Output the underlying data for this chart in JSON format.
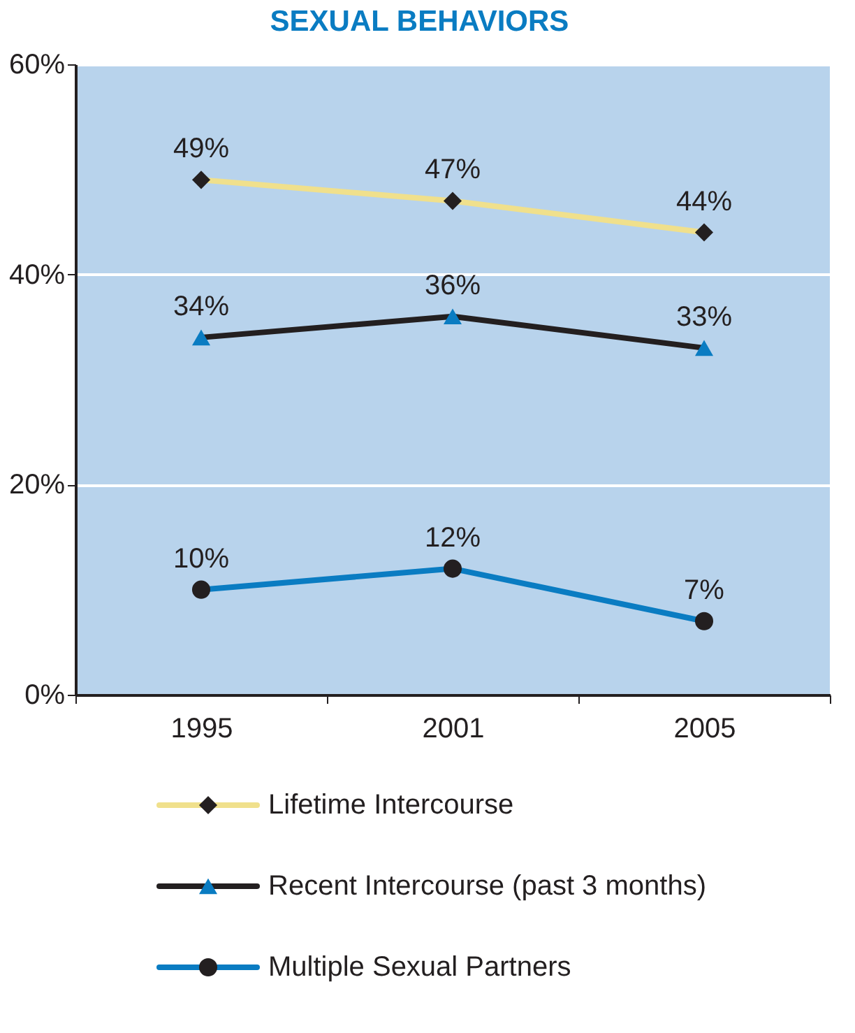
{
  "chart_data": {
    "type": "line",
    "title": "SEXUAL BEHAVIORS",
    "categories": [
      "1995",
      "2001",
      "2005"
    ],
    "ylim": [
      0,
      60
    ],
    "yticks": [
      {
        "value": 0,
        "label": "0%"
      },
      {
        "value": 20,
        "label": "20%"
      },
      {
        "value": 40,
        "label": "40%"
      },
      {
        "value": 60,
        "label": "60%"
      }
    ],
    "grid": "y",
    "legend": "bottom",
    "line_style": "solid",
    "series": [
      {
        "name": "Lifetime Intercourse",
        "color": "#f0e08c",
        "marker": "diamond",
        "colors": [
          "#231f20",
          "#231f20",
          "#231f20"
        ],
        "values": [
          49,
          47,
          44
        ],
        "value_labels": [
          "49%",
          "47%",
          "44%"
        ]
      },
      {
        "name": "Recent Intercourse (past 3 months)",
        "color": "#231f20",
        "marker": "triangle",
        "colors": [
          "#0a7cc2",
          "#0a7cc2",
          "#0a7cc2"
        ],
        "values": [
          34,
          36,
          33
        ],
        "value_labels": [
          "34%",
          "36%",
          "33%"
        ]
      },
      {
        "name": "Multiple Sexual Partners",
        "color": "#0a7cc2",
        "marker": "circle",
        "colors": [
          "#231f20",
          "#231f20",
          "#231f20"
        ],
        "values": [
          10,
          12,
          7
        ],
        "value_labels": [
          "10%",
          "12%",
          "7%"
        ]
      }
    ]
  }
}
